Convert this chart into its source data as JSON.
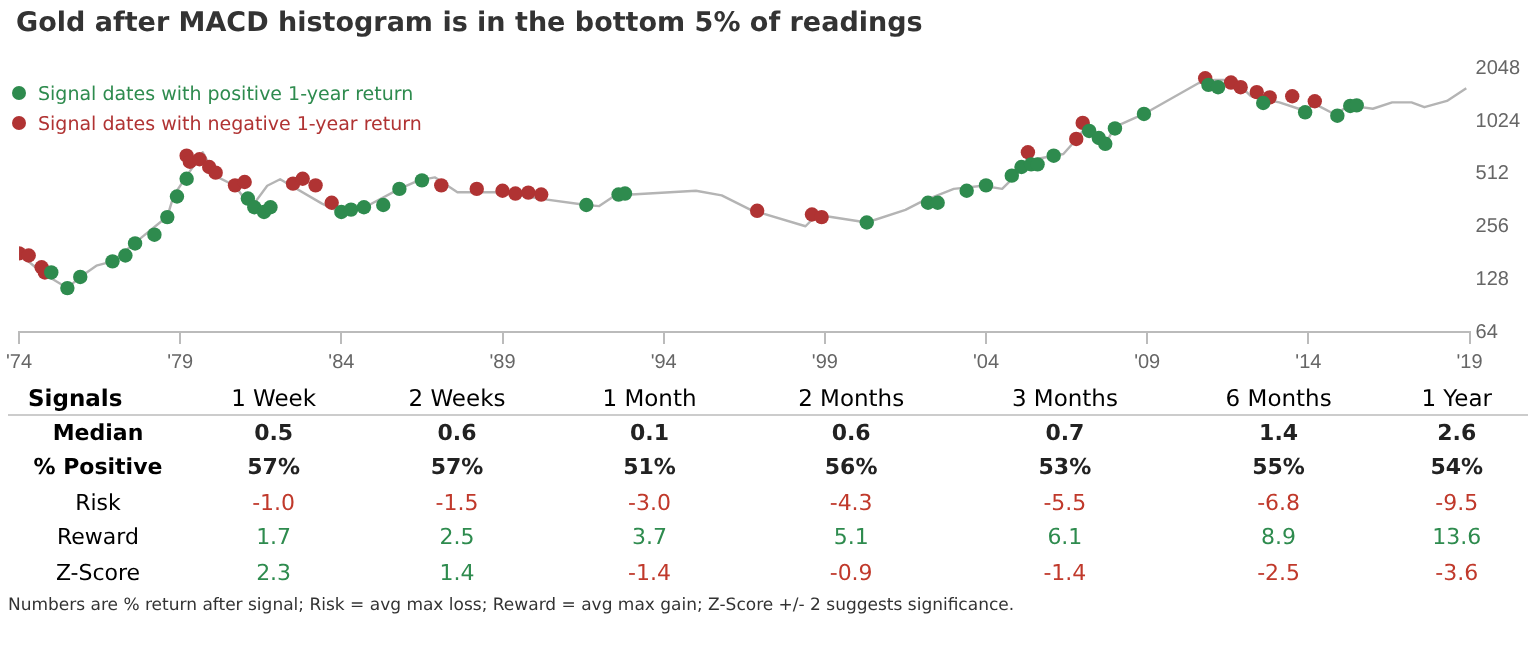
{
  "chart_data": [
    {
      "type": "line",
      "title": "Gold after MACD histogram is in the bottom 5% of readings",
      "log": "y",
      "xlim": [
        1974,
        2019
      ],
      "ylim": [
        64,
        2048
      ],
      "xticks": [
        {
          "value": 1974,
          "label": "'74"
        },
        {
          "value": 1979,
          "label": "'79"
        },
        {
          "value": 1984,
          "label": "'84"
        },
        {
          "value": 1989,
          "label": "'89"
        },
        {
          "value": 1994,
          "label": "'94"
        },
        {
          "value": 1999,
          "label": "'99"
        },
        {
          "value": 2004,
          "label": "'04"
        },
        {
          "value": 2009,
          "label": "'09"
        },
        {
          "value": 2014,
          "label": "'14"
        },
        {
          "value": 2019,
          "label": "'19"
        }
      ],
      "yticks": [
        64,
        128,
        256,
        512,
        1024,
        2048
      ],
      "grid": false,
      "legend": "top left",
      "series": [
        {
          "color": "#b4b4b4",
          "marker": "none",
          "x": [
            1974.0,
            1974.7,
            1975.5,
            1975.9,
            1976.4,
            1976.9,
            1977.7,
            1978.6,
            1978.8,
            1979.2,
            1979.7,
            1980.1,
            1980.7,
            1981.2,
            1981.7,
            1982.1,
            1983.4,
            1983.9,
            1984.7,
            1985.8,
            1986.4,
            1986.9,
            1987.6,
            1988.9,
            1990.1,
            1991.6,
            1992.0,
            1992.5,
            1993.0,
            1995.0,
            1995.8,
            1996.7,
            1998.4,
            1998.75,
            2000.3,
            2001.5,
            2002.0,
            2003.0,
            2003.9,
            2004.5,
            2004.9,
            2005.4,
            2006.4,
            2006.8,
            2007.1,
            2007.7,
            2008.0,
            2008.9,
            2009.9,
            2010.6,
            2011.1,
            2011.7,
            2012.2,
            2012.6,
            2013.1,
            2013.7,
            2014.3,
            2014.8,
            2015.3,
            2016.0,
            2016.6,
            2017.2,
            2017.6,
            2018.3,
            2018.9
          ],
          "values": [
            180,
            140,
            114,
            132,
            153,
            162,
            214,
            292,
            386,
            497,
            680,
            497,
            438,
            328,
            438,
            477,
            346,
            313,
            328,
            420,
            470,
            489,
            402,
            402,
            371,
            340,
            335,
            386,
            390,
            410,
            386,
            319,
            257,
            299,
            270,
            319,
            355,
            420,
            438,
            420,
            497,
            614,
            665,
            804,
            950,
            757,
            950,
            1125,
            1430,
            1690,
            1760,
            1760,
            1430,
            1365,
            1310,
            1205,
            1255,
            1125,
            1255,
            1205,
            1310,
            1310,
            1230,
            1335,
            1580
          ]
        },
        {
          "type": "scatter",
          "marker": "circle",
          "name": "Signal dates with positive 1-year return",
          "color": "#2e8b4e",
          "x": [
            1975.0,
            1975.5,
            1975.9,
            1976.9,
            1977.3,
            1977.6,
            1978.2,
            1978.6,
            1978.9,
            1979.2,
            1981.1,
            1981.3,
            1981.6,
            1981.8,
            1984.0,
            1984.3,
            1984.7,
            1985.3,
            1985.8,
            1986.5,
            1991.6,
            1992.6,
            1992.8,
            2000.3,
            2002.2,
            2002.5,
            2003.4,
            2004.0,
            2004.8,
            2005.1,
            2005.4,
            2005.6,
            2006.1,
            2007.2,
            2007.5,
            2007.7,
            2008.0,
            2008.9,
            2010.9,
            2011.2,
            2012.6,
            2013.9,
            2014.9,
            2015.3,
            2015.5
          ],
          "values": [
            140,
            114,
            132,
            162,
            175,
            205,
            230,
            290,
            380,
            480,
            370,
            330,
            310,
            330,
            310,
            320,
            330,
            340,
            420,
            470,
            340,
            390,
            395,
            270,
            350,
            350,
            410,
            440,
            500,
            560,
            580,
            580,
            650,
            900,
            820,
            760,
            930,
            1125,
            1650,
            1600,
            1300,
            1150,
            1100,
            1250,
            1260
          ]
        },
        {
          "type": "scatter",
          "marker": "circle",
          "name": "Signal dates with negative 1-year return",
          "color": "#b03333",
          "x": [
            1974.0,
            1974.3,
            1974.7,
            1974.8,
            1979.2,
            1979.3,
            1979.6,
            1979.9,
            1980.1,
            1980.7,
            1981.0,
            1982.5,
            1982.8,
            1983.2,
            1983.7,
            1987.1,
            1988.2,
            1989.0,
            1989.4,
            1989.8,
            1990.2,
            1996.9,
            1998.6,
            1998.9,
            2005.3,
            2006.8,
            2007.0,
            2010.8,
            2011.6,
            2011.9,
            2012.4,
            2012.8,
            2013.5,
            2014.2
          ],
          "values": [
            180,
            175,
            150,
            140,
            650,
            600,
            620,
            560,
            520,
            440,
            460,
            450,
            480,
            440,
            350,
            440,
            420,
            410,
            395,
            400,
            390,
            315,
            300,
            290,
            680,
            810,
            1000,
            1800,
            1700,
            1600,
            1500,
            1400,
            1420,
            1330
          ]
        }
      ]
    },
    {
      "type": "heatmap",
      "ylabel": "Signals",
      "categories": [
        "1 Week",
        "2 Weeks",
        "1 Month",
        "2 Months",
        "3 Months",
        "6 Months",
        "1 Year"
      ],
      "y_categories": [
        "Median",
        "% Positive",
        "Risk",
        "Reward",
        "Z-Score"
      ],
      "cells": [
        [
          0.5,
          0.6,
          0.1,
          0.6,
          0.7,
          1.4,
          2.6
        ],
        [
          57,
          57,
          51,
          56,
          53,
          55,
          54
        ],
        [
          -1.0,
          -1.5,
          -3.0,
          -4.3,
          -5.5,
          -6.8,
          -9.5
        ],
        [
          1.7,
          2.5,
          3.7,
          5.1,
          6.1,
          8.9,
          13.6
        ],
        [
          2.3,
          1.4,
          -1.4,
          -0.9,
          -1.4,
          -2.5,
          -3.6
        ]
      ],
      "cell_labels": [
        [
          "0.5",
          "0.6",
          "0.1",
          "0.6",
          "0.7",
          "1.4",
          "2.6"
        ],
        [
          "57%",
          "57%",
          "51%",
          "56%",
          "53%",
          "55%",
          "54%"
        ],
        [
          "-1.0",
          "-1.5",
          "-3.0",
          "-4.3",
          "-5.5",
          "-6.8",
          "-9.5"
        ],
        [
          "1.7",
          "2.5",
          "3.7",
          "5.1",
          "6.1",
          "8.9",
          "13.6"
        ],
        [
          "2.3",
          "1.4",
          "-1.4",
          "-0.9",
          "-1.4",
          "-2.5",
          "-3.6"
        ]
      ],
      "annotations": [
        "Numbers are % return after signal; Risk = avg max loss; Reward = avg max gain; Z-Score +/- 2 suggests significance."
      ]
    }
  ]
}
